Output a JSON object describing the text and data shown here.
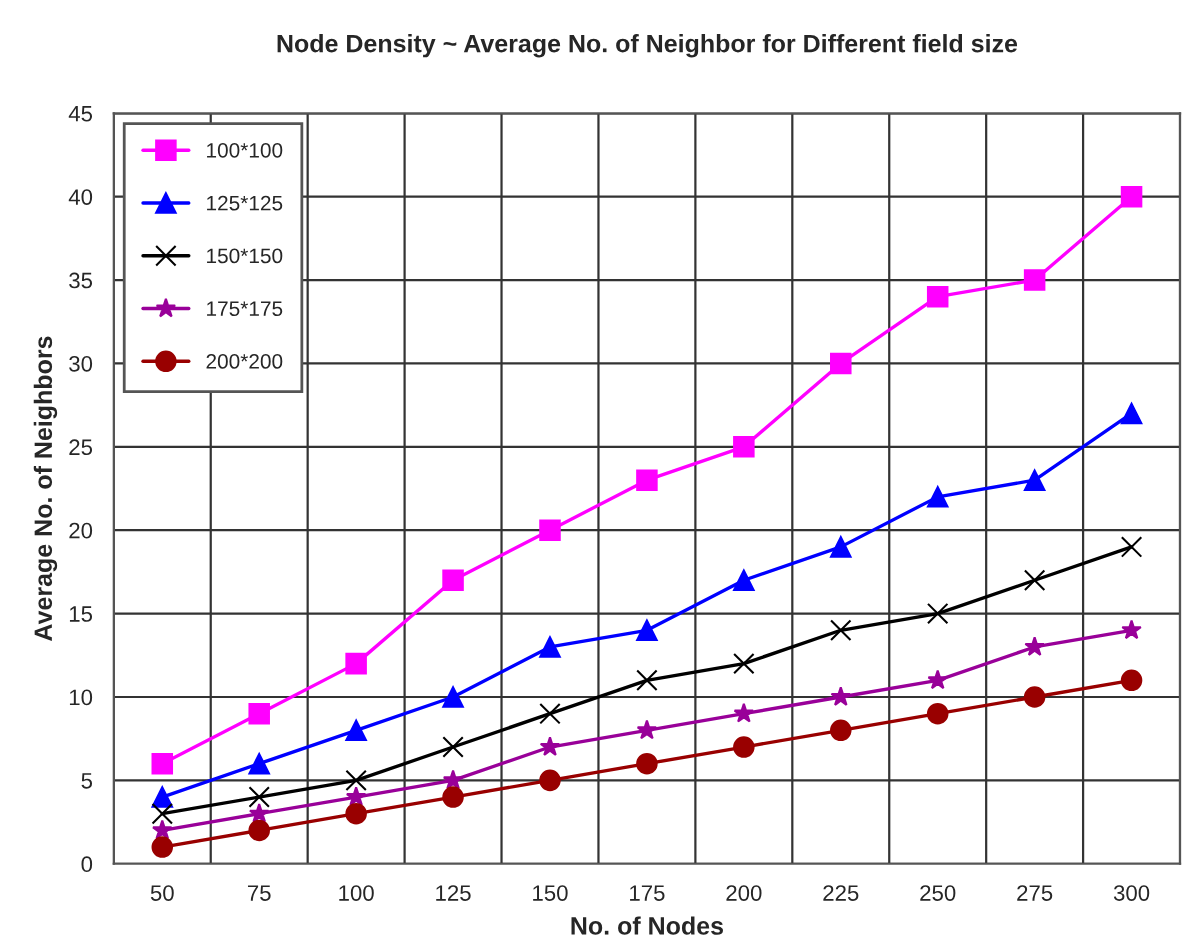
{
  "chart_data": {
    "type": "line",
    "title": "Node Density ~ Average No. of Neighbor for Different field size",
    "xlabel": "No. of Nodes",
    "ylabel": "Average No. of Neighbors",
    "categories": [
      "50",
      "75",
      "100",
      "125",
      "150",
      "175",
      "200",
      "225",
      "250",
      "275",
      "300"
    ],
    "ylim": [
      0,
      45
    ],
    "yticks": [
      0,
      5,
      10,
      15,
      20,
      25,
      30,
      35,
      40,
      45
    ],
    "grid": true,
    "legend": "top left",
    "line_style": "solid",
    "series": [
      {
        "name": "100*100",
        "color": "#ff00ff",
        "marker": "square",
        "values": [
          6,
          9,
          12,
          17,
          20,
          23,
          25,
          30,
          34,
          35,
          40
        ]
      },
      {
        "name": "125*125",
        "color": "#0000ff",
        "marker": "triangle",
        "values": [
          4,
          6,
          8,
          10,
          13,
          14,
          17,
          19,
          22,
          23,
          27
        ]
      },
      {
        "name": "150*150",
        "color": "#000000",
        "marker": "cross",
        "values": [
          3,
          4,
          5,
          7,
          9,
          11,
          12,
          14,
          15,
          17,
          19
        ]
      },
      {
        "name": "175*175",
        "color": "#990099",
        "marker": "star",
        "values": [
          2,
          3,
          4,
          5,
          7,
          8,
          9,
          10,
          11,
          13,
          14
        ]
      },
      {
        "name": "200*200",
        "color": "#990000",
        "marker": "circle",
        "values": [
          1,
          2,
          3,
          4,
          5,
          6,
          7,
          8,
          9,
          10,
          11
        ]
      }
    ]
  }
}
